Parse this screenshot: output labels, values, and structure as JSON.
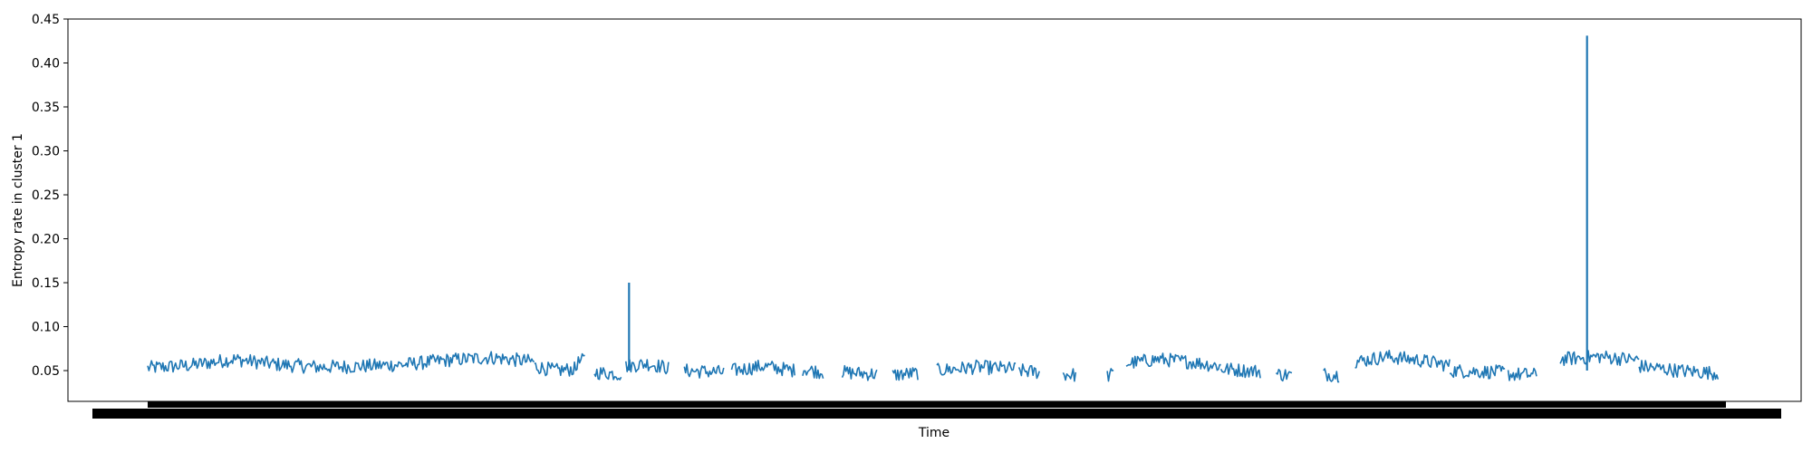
{
  "chart_data": {
    "type": "line",
    "title": "",
    "xlabel": "Time",
    "ylabel": "Entropy rate in cluster 1",
    "ylim": [
      0.015,
      0.45
    ],
    "yticks": [
      "0.05",
      "0.10",
      "0.15",
      "0.20",
      "0.25",
      "0.30",
      "0.35",
      "0.40",
      "0.45"
    ],
    "grid": false,
    "legend": "none",
    "series_color": "#1f77b4",
    "x_tick_labels": "dense overlapping timestamps (illegible)",
    "segments": [
      {
        "x": [
          0.0,
          0.245
        ],
        "base": [
          0.053,
          0.056,
          0.063,
          0.057,
          0.054,
          0.055,
          0.057,
          0.062,
          0.065,
          0.06
        ]
      },
      {
        "x": [
          0.245,
          0.272
        ],
        "base": [
          0.055,
          0.05,
          0.052
        ]
      },
      {
        "x": [
          0.272,
          0.277
        ],
        "base": [
          0.058,
          0.063
        ]
      },
      {
        "x": [
          0.283,
          0.3
        ],
        "base": [
          0.048,
          0.046
        ]
      },
      {
        "x": [
          0.303,
          0.33
        ],
        "base": [
          0.055,
          0.058,
          0.053
        ]
      },
      {
        "x": [
          0.34,
          0.365
        ],
        "base": [
          0.05,
          0.048
        ]
      },
      {
        "x": [
          0.37,
          0.41
        ],
        "base": [
          0.05,
          0.055,
          0.05
        ]
      },
      {
        "x": [
          0.415,
          0.428
        ],
        "base": [
          0.052,
          0.048
        ]
      },
      {
        "x": [
          0.44,
          0.462
        ],
        "base": [
          0.048,
          0.046
        ]
      },
      {
        "x": [
          0.472,
          0.488
        ],
        "base": [
          0.045,
          0.047
        ]
      },
      {
        "x": [
          0.5,
          0.55
        ],
        "base": [
          0.05,
          0.054,
          0.052
        ]
      },
      {
        "x": [
          0.552,
          0.565
        ],
        "base": [
          0.05,
          0.048
        ]
      },
      {
        "x": [
          0.58,
          0.588
        ],
        "base": [
          0.046,
          0.045
        ]
      },
      {
        "x": [
          0.608,
          0.612
        ],
        "base": [
          0.044,
          0.046
        ]
      },
      {
        "x": [
          0.62,
          0.68
        ],
        "base": [
          0.058,
          0.063,
          0.06,
          0.055
        ]
      },
      {
        "x": [
          0.68,
          0.705
        ],
        "base": [
          0.052,
          0.049
        ]
      },
      {
        "x": [
          0.715,
          0.725
        ],
        "base": [
          0.046,
          0.045
        ]
      },
      {
        "x": [
          0.745,
          0.755
        ],
        "base": [
          0.046,
          0.045
        ]
      },
      {
        "x": [
          0.765,
          0.825
        ],
        "base": [
          0.06,
          0.066,
          0.062,
          0.056
        ]
      },
      {
        "x": [
          0.825,
          0.86
        ],
        "base": [
          0.05,
          0.048
        ]
      },
      {
        "x": [
          0.862,
          0.88
        ],
        "base": [
          0.046,
          0.045
        ]
      },
      {
        "x": [
          0.895,
          0.945
        ],
        "base": [
          0.063,
          0.066,
          0.062
        ]
      },
      {
        "x": [
          0.945,
          0.995
        ],
        "base": [
          0.055,
          0.05,
          0.047
        ]
      }
    ],
    "spikes": [
      {
        "x": 0.305,
        "y": 0.15
      },
      {
        "x": 0.912,
        "y": 0.431
      }
    ]
  }
}
